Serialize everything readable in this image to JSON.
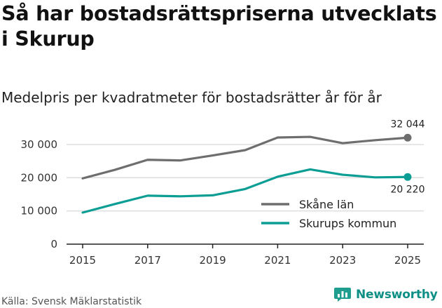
{
  "page": {
    "title": "Så har bostadsrättspriserna utvecklats i Skurup",
    "subtitle": "Medelpris per kvadratmeter för bostadsrätter år för år",
    "source": "Källa: Svensk Mäklarstatistik",
    "brand": "Newsworthy"
  },
  "chart_data": {
    "type": "line",
    "title": "Så har bostadsrättspriserna utvecklats i Skurup",
    "subtitle": "Medelpris per kvadratmeter för bostadsrätter år för år",
    "xlabel": "",
    "ylabel": "",
    "x": [
      2015,
      2016,
      2017,
      2018,
      2019,
      2020,
      2021,
      2022,
      2023,
      2024,
      2025
    ],
    "x_ticks": [
      2015,
      2017,
      2019,
      2021,
      2023,
      2025
    ],
    "x_tick_labels": [
      "2015",
      "2017",
      "2019",
      "2021",
      "2023",
      "2025"
    ],
    "xlim": [
      2015,
      2025
    ],
    "ylim": [
      0,
      34000
    ],
    "y_ticks": [
      0,
      10000,
      20000,
      30000
    ],
    "y_tick_labels": [
      "0",
      "10 000",
      "20 000",
      "30 000"
    ],
    "grid": true,
    "legend": "bottom-right",
    "series": [
      {
        "name": "Skåne län",
        "color": "#6e6e6e",
        "values": [
          19800,
          22400,
          25400,
          25200,
          26700,
          28300,
          32100,
          32300,
          30400,
          31300,
          32044
        ],
        "end_label": "32 044"
      },
      {
        "name": "Skurups kommun",
        "color": "#0c9e95",
        "values": [
          9500,
          12100,
          14600,
          14400,
          14700,
          16600,
          20300,
          22500,
          20900,
          20100,
          20220
        ],
        "end_label": "20 220"
      }
    ]
  }
}
